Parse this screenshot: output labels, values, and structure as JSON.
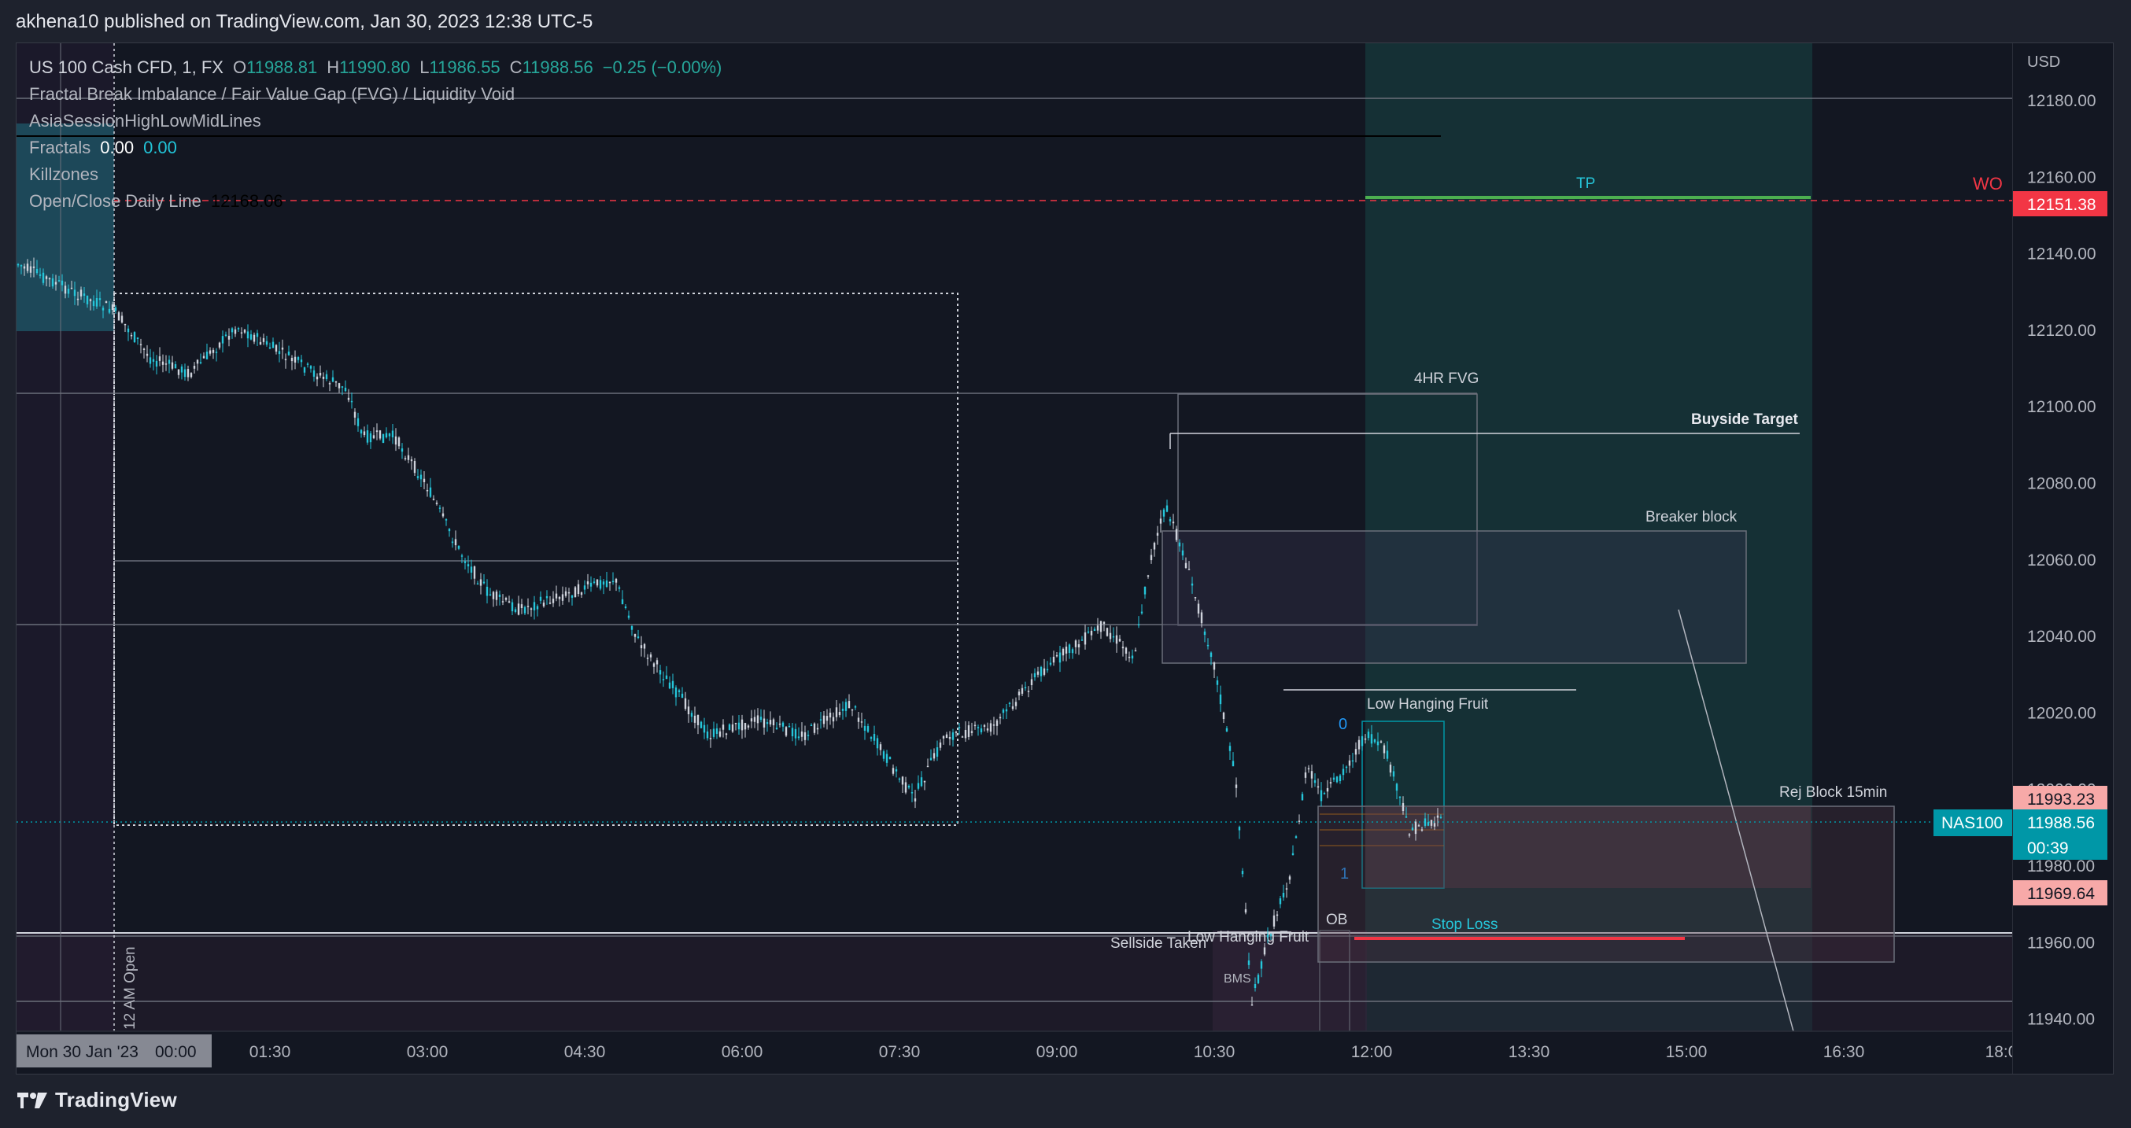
{
  "header": {
    "published": "akhena10 published on TradingView.com, Jan 30, 2023 12:38 UTC-5"
  },
  "footer": {
    "brand": "TradingView"
  },
  "legend": {
    "symbol": "US 100 Cash CFD, 1, FX",
    "o_label": "O",
    "o_value": "11988.81",
    "h_label": "H",
    "h_value": "11990.80",
    "l_label": "L",
    "l_value": "11986.55",
    "c_label": "C",
    "c_value": "11988.56",
    "change": "−0.25 (−0.00%)",
    "indicators": [
      "Fractal Break Imbalance / Fair Value Gap (FVG) / Liquidity Void",
      "AsiaSessionHighLowMidLines",
      "Fractals",
      "Killzones",
      "Open/Close Daily Line"
    ],
    "fractals_values": [
      "0.00",
      "0.00"
    ],
    "open_close_value": "12168.06"
  },
  "axis": {
    "currency": "USD",
    "price_ticks": [
      "12180.00",
      "12160.00",
      "12140.00",
      "12120.00",
      "12100.00",
      "12080.00",
      "12060.00",
      "12040.00",
      "12020.00",
      "12000.00",
      "11980.00",
      "11960.00",
      "11940.00"
    ],
    "time_ticks": [
      "01:30",
      "03:00",
      "04:30",
      "06:00",
      "07:30",
      "09:00",
      "10:30",
      "12:00",
      "13:30",
      "15:00",
      "16:30",
      "18:0"
    ],
    "date_label": "Mon 30 Jan '23",
    "date_time": "00:00",
    "price_badges": [
      {
        "text": "12151.38",
        "bg": "#f23645",
        "fg": "#ffffff"
      },
      {
        "text": "11993.23",
        "bg": "#f7a9a8",
        "fg": "#131722"
      },
      {
        "text": "11988.56",
        "bg": "#0097a7",
        "fg": "#ffffff"
      },
      {
        "text": "00:39",
        "bg": "#0097a7",
        "fg": "#ffffff"
      },
      {
        "text": "11969.64",
        "bg": "#f7a9a8",
        "fg": "#131722"
      }
    ],
    "nas_label": "NAS100"
  },
  "annotations": {
    "tp": "TP",
    "wo": "WO",
    "fvg_4hr": "4HR FVG",
    "buyside": "Buyside Target",
    "breaker": "Breaker block",
    "low_hanging_1": "Low Hanging Fruit",
    "fib_0": "0",
    "fib_1": "1",
    "rej_block": "Rej Block 15min",
    "ob": "OB",
    "stop_loss": "Stop Loss",
    "sellside": "Sellside Taken",
    "low_hanging_2": "Low Hanging Fruit",
    "bms": "BMS",
    "open_12am": "12 AM Open"
  },
  "colors": {
    "background": "#131722",
    "candle_up": "#cfd3dc",
    "candle_down": "#26c6da",
    "tp_green": "#4caf50",
    "wo_red": "#f23645",
    "stop_red": "#f23645",
    "accent_teal": "#0097a7"
  }
}
